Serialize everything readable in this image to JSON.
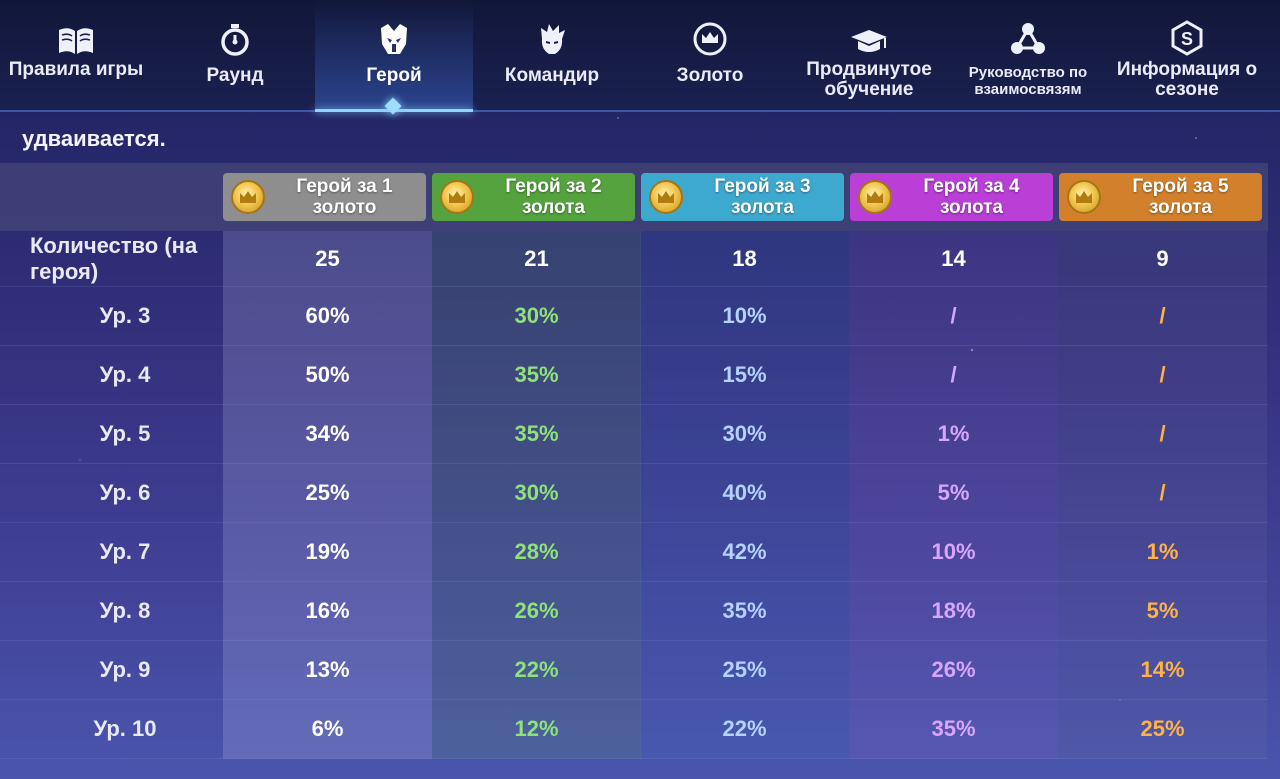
{
  "tabs": [
    {
      "label": "Правила игры",
      "icon": "book-icon",
      "active": false
    },
    {
      "label": "Раунд",
      "icon": "stopwatch-icon",
      "active": false
    },
    {
      "label": "Герой",
      "icon": "hero-helmet-icon",
      "active": true
    },
    {
      "label": "Командир",
      "icon": "commander-icon",
      "active": false
    },
    {
      "label": "Золото",
      "icon": "gold-crown-coin-icon",
      "active": false
    },
    {
      "label": "Продвинутое обучение",
      "icon": "graduation-cap-icon",
      "active": false
    },
    {
      "label": "Руководство по взаимосвязям",
      "icon": "network-icon",
      "active": false
    },
    {
      "label": "Информация о сезоне",
      "icon": "season-s-icon",
      "active": false
    }
  ],
  "intro_text": "удваивается.",
  "table": {
    "columns": [
      {
        "label": "Герой за 1 золото",
        "color": "#8e8e8e"
      },
      {
        "label": "Герой за 2 золота",
        "color": "#55a33f"
      },
      {
        "label": "Герой за 3 золота",
        "color": "#3ea9cf"
      },
      {
        "label": "Герой за 4 золота",
        "color": "#b93fd6"
      },
      {
        "label": "Герой за 5 золота",
        "color": "#d2802b"
      }
    ],
    "text_colors": [
      "#ffffff",
      "#8ee27a",
      "#b4d2ff",
      "#d9a6ff",
      "#ffb347"
    ],
    "quantity_label": "Количество (на героя)",
    "quantities": [
      "25",
      "21",
      "18",
      "14",
      "9"
    ],
    "rows": [
      {
        "label": "Ур. 3",
        "values": [
          "60%",
          "30%",
          "10%",
          "/",
          "/"
        ]
      },
      {
        "label": "Ур. 4",
        "values": [
          "50%",
          "35%",
          "15%",
          "/",
          "/"
        ]
      },
      {
        "label": "Ур. 5",
        "values": [
          "34%",
          "35%",
          "30%",
          "1%",
          "/"
        ]
      },
      {
        "label": "Ур. 6",
        "values": [
          "25%",
          "30%",
          "40%",
          "5%",
          "/"
        ]
      },
      {
        "label": "Ур. 7",
        "values": [
          "19%",
          "28%",
          "42%",
          "10%",
          "1%"
        ]
      },
      {
        "label": "Ур. 8",
        "values": [
          "16%",
          "26%",
          "35%",
          "18%",
          "5%"
        ]
      },
      {
        "label": "Ур. 9",
        "values": [
          "13%",
          "22%",
          "25%",
          "26%",
          "14%"
        ]
      },
      {
        "label": "Ур. 10",
        "values": [
          "6%",
          "12%",
          "22%",
          "35%",
          "25%"
        ]
      }
    ]
  }
}
